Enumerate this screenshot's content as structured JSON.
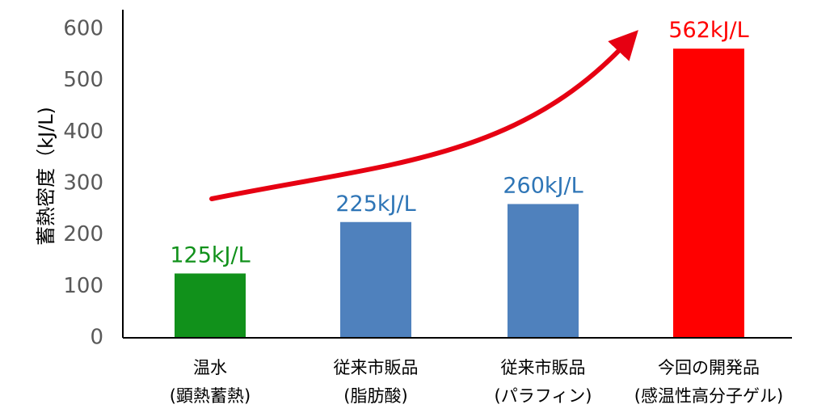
{
  "chart_data": {
    "type": "bar",
    "ylabel": "蓄熱密度（kJ/L)",
    "ylim": [
      0,
      600
    ],
    "yticks": [
      0,
      100,
      200,
      300,
      400,
      500,
      600
    ],
    "grid": false,
    "categories": [
      {
        "line1": "温水",
        "line2": "(顕熱蓄熱)"
      },
      {
        "line1": "従来市販品",
        "line2": "(脂肪酸)"
      },
      {
        "line1": "従来市販品",
        "line2": "(パラフィン)"
      },
      {
        "line1": "今回の開発品",
        "line2": "(感温性高分子ゲル)"
      }
    ],
    "values": [
      125,
      225,
      260,
      562
    ],
    "data_labels": [
      "125kJ/L",
      "225kJ/L",
      "260kJ/L",
      "562kJ/L"
    ],
    "bar_colors": [
      "#11911B",
      "#4F81BD",
      "#4F81BD",
      "#FF0000"
    ],
    "label_colors": [
      "#11911B",
      "#2E75B6",
      "#2E75B6",
      "#FF0000"
    ],
    "annotation": {
      "type": "trend-arrow",
      "color": "#E60012"
    }
  }
}
